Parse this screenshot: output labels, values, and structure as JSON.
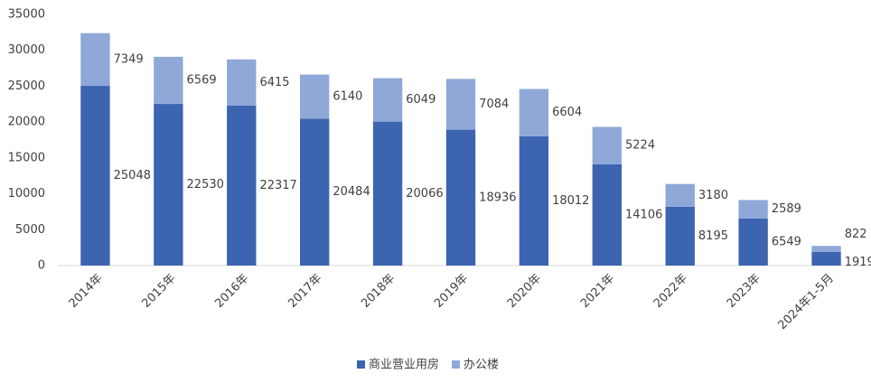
{
  "chart_data": {
    "type": "stacked-bar",
    "categories": [
      "2014年",
      "2015年",
      "2016年",
      "2017年",
      "2018年",
      "2019年",
      "2020年",
      "2021年",
      "2022年",
      "2023年",
      "2024年1-5月"
    ],
    "series": [
      {
        "name": "商业营业用房",
        "color": "#3d64b0",
        "values": [
          25048,
          22530,
          22317,
          20484,
          20066,
          18936,
          18012,
          14106,
          8195,
          6549,
          1919
        ]
      },
      {
        "name": "办公楼",
        "color": "#8fa8d8",
        "values": [
          7349,
          6569,
          6415,
          6140,
          6049,
          7084,
          6604,
          5224,
          3180,
          2589,
          822
        ]
      }
    ],
    "ylim": [
      0,
      35000
    ],
    "yticks": [
      0,
      5000,
      10000,
      15000,
      20000,
      25000,
      30000,
      35000
    ],
    "grid": false,
    "legend": "bottom"
  }
}
